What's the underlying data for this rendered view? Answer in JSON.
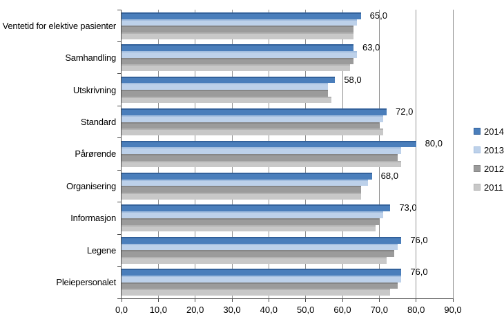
{
  "chart_data": {
    "type": "bar",
    "orientation": "horizontal",
    "title": "",
    "xlabel": "",
    "ylabel": "",
    "xlim": [
      0,
      90
    ],
    "grid": true,
    "legend_position": "right",
    "categories": [
      "Ventetid for elektive pasienter",
      "Samhandling",
      "Utskrivning",
      "Standard",
      "Pårørende",
      "Organisering",
      "Informasjon",
      "Legene",
      "Pleiepersonalet"
    ],
    "series": [
      {
        "name": "2014",
        "color": "#4A7EBB",
        "edge_color": "#32619B",
        "values": [
          65,
          63,
          58,
          72,
          80,
          68,
          73,
          76,
          76
        ]
      },
      {
        "name": "2013",
        "color": "#BDD1EA",
        "edge_color": "#A3BEDF",
        "values": [
          64,
          64,
          56,
          71,
          76,
          67,
          71,
          75,
          76
        ]
      },
      {
        "name": "2012",
        "color": "#9B9B9B",
        "edge_color": "#868686",
        "values": [
          63,
          63,
          56,
          70,
          75,
          65,
          70,
          74,
          75
        ]
      },
      {
        "name": "2011",
        "color": "#C8C8C8",
        "edge_color": "#B3B3B3",
        "values": [
          63,
          62,
          57,
          71,
          76,
          65,
          69,
          72,
          73
        ]
      }
    ],
    "data_labels_series": "2014",
    "data_labels": [
      "65,0",
      "63,0",
      "58,0",
      "72,0",
      "80,0",
      "68,0",
      "73,0",
      "76,0",
      "76,0"
    ],
    "x_ticks": [
      "0,0",
      "10,0",
      "20,0",
      "30,0",
      "40,0",
      "50,0",
      "60,0",
      "70,0",
      "80,0",
      "90,0"
    ],
    "colors": {
      "background": "#FFFFFF",
      "gridline": "#8F8F8F",
      "axis": "#4A4A4A",
      "text": "#000000"
    }
  }
}
